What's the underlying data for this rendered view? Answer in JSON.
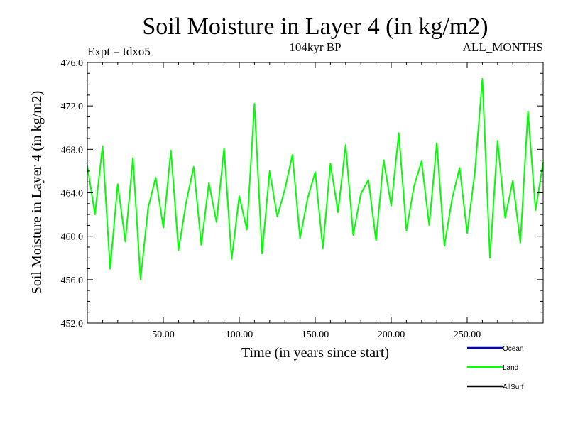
{
  "chart_data": {
    "type": "line",
    "title": "Soil Moisture in Layer 4 (in kg/m2)",
    "subtitle_left": "Expt = tdxo5",
    "subtitle_center": "104kyr BP",
    "subtitle_right": "ALL_MONTHS",
    "xlabel": "Time (in years since start)",
    "ylabel": "Soil Moisture in Layer 4 (in kg/m2)",
    "xlim": [
      0,
      300
    ],
    "ylim": [
      452,
      476
    ],
    "xticks": [
      50,
      100,
      150,
      200,
      250
    ],
    "xtick_labels": [
      "50.00",
      "100.00",
      "150.00",
      "200.00",
      "250.00"
    ],
    "yticks": [
      452,
      456,
      460,
      464,
      468,
      472,
      476
    ],
    "ytick_labels": [
      "452.0",
      "456.0",
      "460.0",
      "464.0",
      "468.0",
      "472.0",
      "476.0"
    ],
    "grid": false,
    "legend_position": "bottom-right",
    "legend": [
      {
        "name": "Ocean",
        "color": "#0000cc"
      },
      {
        "name": "Land",
        "color": "#00ff00"
      },
      {
        "name": "AllSurf",
        "color": "#000000"
      }
    ],
    "series": [
      {
        "name": "Land",
        "color": "#00ff00",
        "x": [
          0,
          5,
          10,
          15,
          20,
          25,
          30,
          35,
          40,
          45,
          50,
          55,
          60,
          65,
          70,
          75,
          80,
          85,
          90,
          95,
          100,
          105,
          110,
          115,
          120,
          125,
          130,
          135,
          140,
          145,
          150,
          155,
          160,
          165,
          170,
          175,
          180,
          185,
          190,
          195,
          200,
          205,
          210,
          215,
          220,
          225,
          230,
          235,
          240,
          245,
          250,
          255,
          260,
          265,
          270,
          275,
          280,
          285,
          290,
          295,
          300
        ],
        "y": [
          466.5,
          462.0,
          468.3,
          457.0,
          464.8,
          459.5,
          467.2,
          456.0,
          462.6,
          465.4,
          460.8,
          467.9,
          458.7,
          463.1,
          466.4,
          459.2,
          464.9,
          461.3,
          468.1,
          457.9,
          463.7,
          460.6,
          472.2,
          458.4,
          466.0,
          461.8,
          464.3,
          467.5,
          459.8,
          463.5,
          465.9,
          458.9,
          466.7,
          462.2,
          468.4,
          460.1,
          463.9,
          465.2,
          459.6,
          467.0,
          462.8,
          469.5,
          460.5,
          464.6,
          466.9,
          461.0,
          468.6,
          459.1,
          463.4,
          466.3,
          460.3,
          465.8,
          474.5,
          458.0,
          468.8,
          461.7,
          465.1,
          459.4,
          471.5,
          462.4,
          466.8
        ]
      }
    ]
  }
}
